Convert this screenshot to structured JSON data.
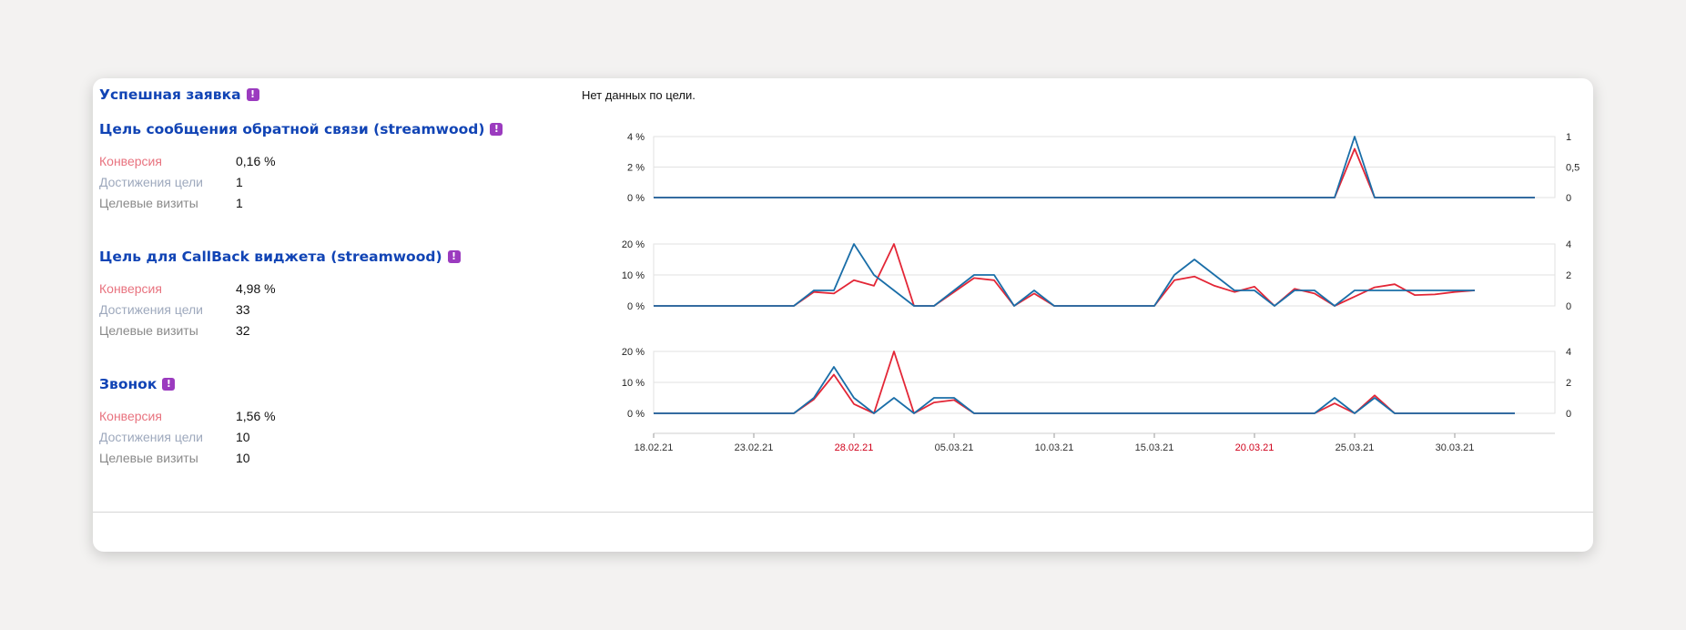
{
  "goals": [
    {
      "title": "Успешная заявка",
      "no_data": "Нет данных по цели."
    },
    {
      "title": "Цель сообщения обратной связи (streamwood)",
      "metrics": [
        {
          "label": "Конверсия",
          "value": "0,16 %"
        },
        {
          "label": "Достижения цели",
          "value": "1"
        },
        {
          "label": "Целевые визиты",
          "value": "1"
        }
      ]
    },
    {
      "title": "Цель для CallBack виджета (streamwood)",
      "metrics": [
        {
          "label": "Конверсия",
          "value": "4,98 %"
        },
        {
          "label": "Достижения цели",
          "value": "33"
        },
        {
          "label": "Целевые визиты",
          "value": "32"
        }
      ]
    },
    {
      "title": "Звонок",
      "metrics": [
        {
          "label": "Конверсия",
          "value": "1,56 %"
        },
        {
          "label": "Достижения цели",
          "value": "10"
        },
        {
          "label": "Целевые визиты",
          "value": "10"
        }
      ]
    }
  ],
  "badge_glyph": "!",
  "colors": {
    "conversion": "#e32636",
    "reaches": "#1a6ea8",
    "title": "#1144b5",
    "badge": "#9b3bbf",
    "holiday_date": "#d0021b"
  },
  "chart_data": {
    "type": "line",
    "x_labels": [
      {
        "text": "18.02.21",
        "holiday": false
      },
      {
        "text": "23.02.21",
        "holiday": false
      },
      {
        "text": "28.02.21",
        "holiday": true
      },
      {
        "text": "05.03.21",
        "holiday": false
      },
      {
        "text": "10.03.21",
        "holiday": false
      },
      {
        "text": "15.03.21",
        "holiday": false
      },
      {
        "text": "20.03.21",
        "holiday": true
      },
      {
        "text": "25.03.21",
        "holiday": false
      },
      {
        "text": "30.03.21",
        "holiday": false
      }
    ],
    "charts": [
      {
        "goal": "Цель сообщения обратной связи (streamwood)",
        "left_ticks": [
          "4 %",
          "2 %",
          "0 %"
        ],
        "right_ticks": [
          "1",
          "0,5",
          "0"
        ],
        "left_max": 4,
        "right_max": 1,
        "series": [
          {
            "key": "conversion",
            "axis": "left",
            "values": [
              0,
              0,
              0,
              0,
              0,
              0,
              0,
              0,
              0,
              0,
              0,
              0,
              0,
              0,
              0,
              0,
              0,
              0,
              0,
              0,
              0,
              0,
              0,
              0,
              0,
              0,
              0,
              0,
              0,
              0,
              0,
              0,
              0,
              0,
              0,
              3.2,
              0,
              0,
              0,
              0,
              0,
              0,
              0,
              0,
              0
            ]
          },
          {
            "key": "reaches",
            "axis": "right",
            "values": [
              0,
              0,
              0,
              0,
              0,
              0,
              0,
              0,
              0,
              0,
              0,
              0,
              0,
              0,
              0,
              0,
              0,
              0,
              0,
              0,
              0,
              0,
              0,
              0,
              0,
              0,
              0,
              0,
              0,
              0,
              0,
              0,
              0,
              0,
              0,
              1,
              0,
              0,
              0,
              0,
              0,
              0,
              0,
              0,
              0
            ]
          }
        ]
      },
      {
        "goal": "Цель для CallBack виджета (streamwood)",
        "left_ticks": [
          "20 %",
          "10 %",
          "0 %"
        ],
        "right_ticks": [
          "4",
          "2",
          "0"
        ],
        "left_max": 20,
        "right_max": 4,
        "series": [
          {
            "key": "conversion",
            "axis": "left",
            "values": [
              0,
              0,
              0,
              0,
              0,
              0,
              0,
              0,
              4.5,
              4,
              8.3,
              6.5,
              20,
              0,
              0,
              4.5,
              9,
              8.3,
              0,
              4,
              0,
              0,
              0,
              0,
              0,
              0,
              8.3,
              9.5,
              6.5,
              4.5,
              6.2,
              0,
              5.5,
              4,
              0,
              3,
              6,
              7,
              3.5,
              3.7,
              4.5,
              5
            ]
          },
          {
            "key": "reaches",
            "axis": "right",
            "values": [
              0,
              0,
              0,
              0,
              0,
              0,
              0,
              0,
              1,
              1,
              4,
              2,
              1,
              0,
              0,
              1,
              2,
              2,
              0,
              1,
              0,
              0,
              0,
              0,
              0,
              0,
              2,
              3,
              2,
              1,
              1,
              0,
              1,
              1,
              0,
              1,
              1,
              1,
              1,
              1,
              1,
              1
            ]
          }
        ]
      },
      {
        "goal": "Звонок",
        "left_ticks": [
          "20 %",
          "10 %",
          "0 %"
        ],
        "right_ticks": [
          "4",
          "2",
          "0"
        ],
        "left_max": 20,
        "right_max": 4,
        "series": [
          {
            "key": "conversion",
            "axis": "left",
            "values": [
              0,
              0,
              0,
              0,
              0,
              0,
              0,
              0,
              4.5,
              12.5,
              3,
              0,
              20,
              0,
              3.5,
              4.3,
              0,
              0,
              0,
              0,
              0,
              0,
              0,
              0,
              0,
              0,
              0,
              0,
              0,
              0,
              0,
              0,
              0,
              0,
              3.2,
              0,
              5.8,
              0,
              0,
              0,
              0,
              0,
              0,
              0
            ]
          },
          {
            "key": "reaches",
            "axis": "right",
            "values": [
              0,
              0,
              0,
              0,
              0,
              0,
              0,
              0,
              1,
              3,
              1,
              0,
              1,
              0,
              1,
              1,
              0,
              0,
              0,
              0,
              0,
              0,
              0,
              0,
              0,
              0,
              0,
              0,
              0,
              0,
              0,
              0,
              0,
              0,
              1,
              0,
              1,
              0,
              0,
              0,
              0,
              0,
              0,
              0
            ]
          }
        ]
      }
    ]
  }
}
